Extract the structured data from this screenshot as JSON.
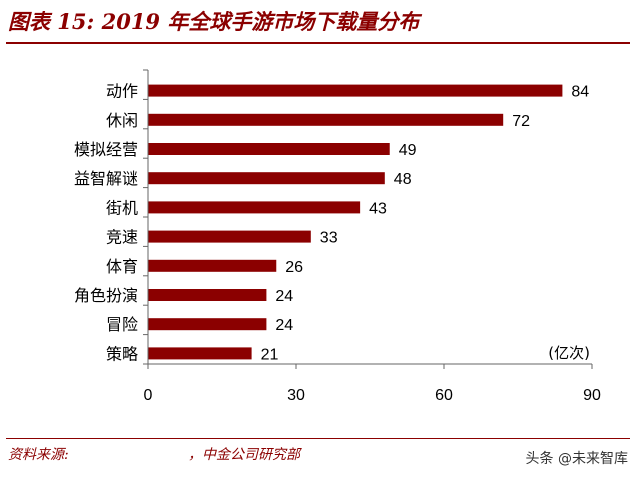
{
  "header": {
    "title": "图表 15: 2019 年全球手游市场下载量分布"
  },
  "footer": {
    "source_label": "资料来源:",
    "source_text": "，中金公司研究部"
  },
  "watermark": "头条 @未来智库",
  "colors": {
    "bar": "#8b0000",
    "title": "#8b0000",
    "axis": "#666666"
  },
  "chart_data": {
    "type": "bar",
    "orientation": "horizontal",
    "categories": [
      "动作",
      "休闲",
      "模拟经营",
      "益智解谜",
      "街机",
      "竞速",
      "体育",
      "角色扮演",
      "冒险",
      "策略"
    ],
    "values": [
      84,
      72,
      49,
      48,
      43,
      33,
      26,
      24,
      24,
      21
    ],
    "unit_label": "(亿次)",
    "xticks": [
      0,
      30,
      60,
      90
    ],
    "xlim": [
      0,
      90
    ],
    "grid": false
  }
}
